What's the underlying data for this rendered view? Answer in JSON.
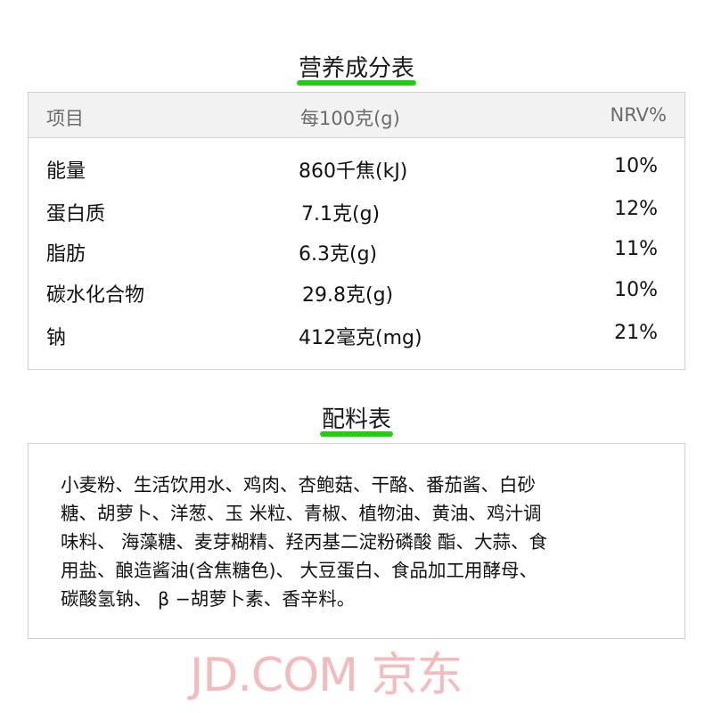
{
  "nutrition": {
    "title": "营养成分表",
    "headers": [
      "项目",
      "每100克(g)",
      "NRV%"
    ],
    "rows": [
      {
        "item": "能量",
        "amount": "860千焦(kJ)",
        "nrv": "10%"
      },
      {
        "item": "蛋白质",
        "amount": "7.1克(g)",
        "nrv": "12%"
      },
      {
        "item": "脂肪",
        "amount": "6.3克(g)",
        "nrv": "11%"
      },
      {
        "item": "碳水化合物",
        "amount": "29.8克(g)",
        "nrv": "10%"
      },
      {
        "item": "钠",
        "amount": "412毫克(mg)",
        "nrv": "21%"
      }
    ]
  },
  "watermark": "JD.COM 京东",
  "ingredients": {
    "title": "配料表",
    "lines": [
      "小麦粉、生活饮用水、鸡肉、杏鲍菇、干酪、番茄酱、白砂",
      "糖、胡萝卜、洋葱、玉 米粒、青椒、植物油、黄油、鸡汁调",
      "味料、 海藻糖、麦芽糊精、羟丙基二淀粉磷酸 酯、大蒜、食",
      "用盐、酿造酱油(含焦糖色)、 大豆蛋白、食品加工用酵母、",
      "碳酸氢钠、 β −胡萝卜素、香辛料。"
    ]
  }
}
